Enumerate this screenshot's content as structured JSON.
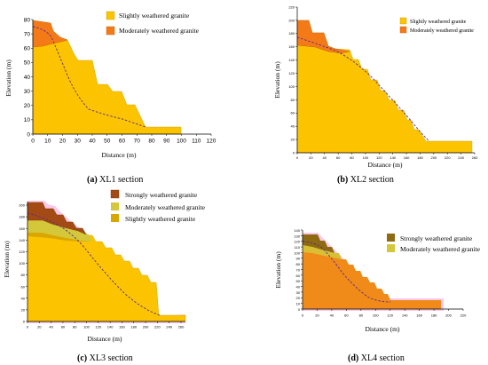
{
  "colors": {
    "slightly": "#FCC400",
    "moderately_xl1": "#F47A18",
    "moderately_yellow": "#D4C83A",
    "strongly": "#A44A14",
    "slightly_dark": "#D9A700",
    "mod_xl4": "#F08A18",
    "strong_xl4": "#8E6B10",
    "dashed": "#5B2B8C",
    "halo": "#F7B0E4"
  },
  "panels": [
    {
      "id": "xl1",
      "y_label": "Elevation (m)",
      "x_label": "Distance (m)",
      "x_ticks": [
        "0",
        "10",
        "20",
        "30",
        "40",
        "50",
        "60",
        "70",
        "80",
        "90",
        "100",
        "110",
        "120"
      ],
      "y_ticks": [
        "0",
        "10",
        "20",
        "30",
        "40",
        "50",
        "60",
        "70",
        "80"
      ],
      "legend": [
        "Slightly weathered granite",
        "Moderately weathered granite"
      ],
      "caption_letter": "(a)",
      "caption_text": " XL1 section"
    },
    {
      "id": "xl2",
      "y_label": "Elevation (m)",
      "x_label": "Distance (m)",
      "x_ticks": [
        "0",
        "20",
        "40",
        "60",
        "80",
        "100",
        "120",
        "140",
        "160",
        "180",
        "200",
        "220",
        "240",
        "260"
      ],
      "y_ticks": [
        "0",
        "20",
        "40",
        "60",
        "80",
        "100",
        "120",
        "140",
        "160",
        "180",
        "200",
        "220"
      ],
      "legend": [
        "Slightly weathered granite",
        "Moderately weathered granite"
      ],
      "caption_letter": "(b)",
      "caption_text": " XL2 section"
    },
    {
      "id": "xl3",
      "y_label": "Elevation (m)",
      "x_label": "Distance (m)",
      "x_ticks": [
        "0",
        "20",
        "40",
        "60",
        "80",
        "100",
        "120",
        "140",
        "160",
        "180",
        "200",
        "220",
        "240",
        "260"
      ],
      "y_ticks": [
        "0",
        "20",
        "40",
        "60",
        "80",
        "100",
        "120",
        "140",
        "160",
        "180",
        "200"
      ],
      "legend": [
        "Strongly weathered granite",
        "Moderately weathered granite",
        "Slightly weathered granite"
      ],
      "caption_letter": "(c)",
      "caption_text": " XL3 section"
    },
    {
      "id": "xl4",
      "y_label": "Elevation (m)",
      "x_label": "Distance (m)",
      "x_ticks": [
        "0",
        "20",
        "40",
        "60",
        "80",
        "100",
        "120",
        "140",
        "160",
        "180",
        "200",
        "220"
      ],
      "y_ticks": [
        "0",
        "10",
        "20",
        "30",
        "40",
        "50",
        "60",
        "70",
        "80",
        "90",
        "100",
        "110",
        "120",
        "130",
        "140"
      ],
      "legend": [
        "Strongly weathered granite",
        "Moderately weathered granite"
      ],
      "caption_letter": "(d)",
      "caption_text": " XL4 section"
    }
  ]
}
